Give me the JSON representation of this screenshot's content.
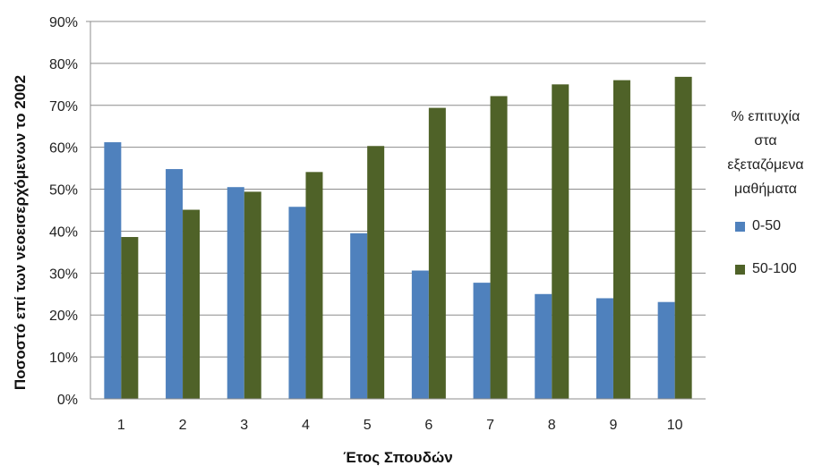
{
  "chart_data": {
    "type": "bar",
    "categories": [
      "1",
      "2",
      "3",
      "4",
      "5",
      "6",
      "7",
      "8",
      "9",
      "10"
    ],
    "series": [
      {
        "name": "0-50",
        "color": "#4F81BD",
        "values": [
          61.2,
          54.8,
          50.5,
          45.8,
          39.5,
          30.6,
          27.7,
          25.0,
          24.0,
          23.1
        ]
      },
      {
        "name": "50-100",
        "color": "#4F6228",
        "values": [
          38.6,
          45.1,
          49.4,
          54.1,
          60.3,
          69.4,
          72.2,
          75.0,
          76.0,
          76.8
        ]
      }
    ],
    "xlabel": "Έτος Σπουδών",
    "ylabel": "Ποσοστό επί των νεοεισερχόμενων το 2002",
    "ylim": [
      0,
      90
    ],
    "yticks": [
      "0%",
      "10%",
      "20%",
      "30%",
      "40%",
      "50%",
      "60%",
      "70%",
      "80%",
      "90%"
    ],
    "grid": true,
    "legend_title": [
      "% επιτυχία",
      "στα",
      "εξεταζόμενα",
      "μαθήματα"
    ],
    "legend_position": "right"
  }
}
